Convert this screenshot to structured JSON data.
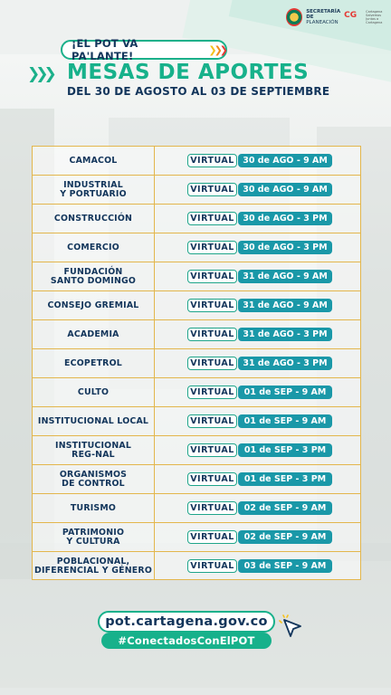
{
  "header": {
    "secretaria_line1": "SECRETARÍA DE",
    "secretaria_line2": "PLANEACIÓN",
    "brand_mark": "CG",
    "brand_caption": "Cartagena Salvemos Juntos a Cartagena"
  },
  "banner": {
    "slogan": "¡EL POT VA PA'LANTE!",
    "title": "MESAS DE APORTES",
    "subtitle": "DEL 30 DE AGOSTO AL 03 DE SEPTIEMBRE"
  },
  "colors": {
    "accent_green": "#17b18b",
    "navy": "#12355b",
    "date_teal": "#1a98a8",
    "border_gold": "#e3b64c"
  },
  "schedule": [
    {
      "name": "CAMACOL",
      "mode": "VIRTUAL",
      "date": "30 de AGO - 9 AM"
    },
    {
      "name": "INDUSTRIAL\nY PORTUARIO",
      "mode": "VIRTUAL",
      "date": "30 de AGO - 9 AM"
    },
    {
      "name": "CONSTRUCCIÓN",
      "mode": "VIRTUAL",
      "date": "30 de AGO - 3 PM"
    },
    {
      "name": "COMERCIO",
      "mode": "VIRTUAL",
      "date": "30 de AGO - 3 PM"
    },
    {
      "name": "FUNDACIÓN\nSANTO DOMINGO",
      "mode": "VIRTUAL",
      "date": "31 de AGO - 9 AM"
    },
    {
      "name": "CONSEJO GREMIAL",
      "mode": "VIRTUAL",
      "date": "31 de AGO - 9 AM"
    },
    {
      "name": "ACADEMIA",
      "mode": "VIRTUAL",
      "date": "31 de AGO - 3 PM"
    },
    {
      "name": "ECOPETROL",
      "mode": "VIRTUAL",
      "date": "31 de AGO - 3 PM"
    },
    {
      "name": "CULTO",
      "mode": "VIRTUAL",
      "date": "01 de SEP - 9 AM"
    },
    {
      "name": "INSTITUCIONAL LOCAL",
      "mode": "VIRTUAL",
      "date": "01 de SEP - 9 AM"
    },
    {
      "name": "INSTITUCIONAL\nREG-NAL",
      "mode": "VIRTUAL",
      "date": "01 de SEP - 3 PM"
    },
    {
      "name": "ORGANISMOS\nDE CONTROL",
      "mode": "VIRTUAL",
      "date": "01 de SEP - 3 PM"
    },
    {
      "name": "TURISMO",
      "mode": "VIRTUAL",
      "date": "02 de SEP - 9 AM"
    },
    {
      "name": "PATRIMONIO\nY CULTURA",
      "mode": "VIRTUAL",
      "date": "02 de SEP - 9 AM"
    },
    {
      "name": "POBLACIONAL,\nDIFERENCIAL Y GÉNERO",
      "mode": "VIRTUAL",
      "date": "03 de SEP - 9 AM"
    }
  ],
  "footer": {
    "url": "pot.cartagena.gov.co",
    "hashtag": "#ConectadosConElPOT",
    "cursor_icon": "pointer-arrow-icon"
  }
}
